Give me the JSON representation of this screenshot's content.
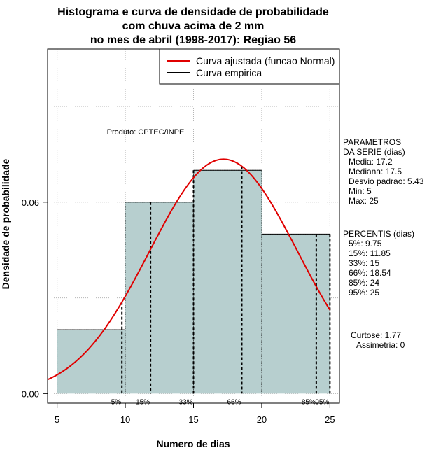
{
  "chart_data": {
    "type": "histogram",
    "title": [
      "Histograma e curva de densidade de probabilidade",
      "com chuva acima de 2 mm",
      "no mes de abril (1998-2017): Regiao 56"
    ],
    "xlabel": "Numero de dias",
    "ylabel": "Densidade de probabilidade",
    "xlim": [
      4.3,
      25.7
    ],
    "ylim": [
      -0.003,
      0.108
    ],
    "x_ticks": [
      5,
      10,
      15,
      20,
      25
    ],
    "y_ticks": [
      0.0,
      0.06
    ],
    "y_tick_labels": [
      "0.00",
      "0.06"
    ],
    "grid": true,
    "legend_position": "top-right",
    "legend": [
      {
        "label": "Curva ajustada (funcao Normal)",
        "color": "#e00000"
      },
      {
        "label": "Curva empirica",
        "color": "#000000"
      }
    ],
    "bars": [
      {
        "x0": 5,
        "x1": 10,
        "density": 0.02
      },
      {
        "x0": 10,
        "x1": 15,
        "density": 0.06
      },
      {
        "x0": 15,
        "x1": 20,
        "density": 0.07
      },
      {
        "x0": 20,
        "x1": 25,
        "density": 0.05
      }
    ],
    "bar_color": "#b7cfcf",
    "normal_fit": {
      "mean": 17.2,
      "sd": 5.43,
      "color": "#e00000"
    },
    "percentiles": [
      {
        "label": "5%",
        "x": 9.75
      },
      {
        "label": "15%",
        "x": 11.85
      },
      {
        "label": "33%",
        "x": 15
      },
      {
        "label": "66%",
        "x": 18.54
      },
      {
        "label": "85%",
        "x": 24
      },
      {
        "label": "95%",
        "x": 25
      }
    ],
    "annotation": "Produto: CPTEC/INPE"
  },
  "parametros": {
    "header": [
      "PARAMETROS",
      "DA SERIE (dias)"
    ],
    "lines": [
      "Media: 17.2",
      "Mediana: 17.5",
      "Desvio padrao: 5.43",
      "Min: 5",
      "Max: 25"
    ]
  },
  "percentis": {
    "header": "PERCENTIS (dias)",
    "lines": [
      "5%: 9.75",
      "15%: 11.85",
      "33%: 15",
      "66%: 18.54",
      "85%: 24",
      "95%: 25"
    ]
  },
  "shape": {
    "lines": [
      "Curtose: 1.77",
      "Assimetria: 0"
    ]
  }
}
